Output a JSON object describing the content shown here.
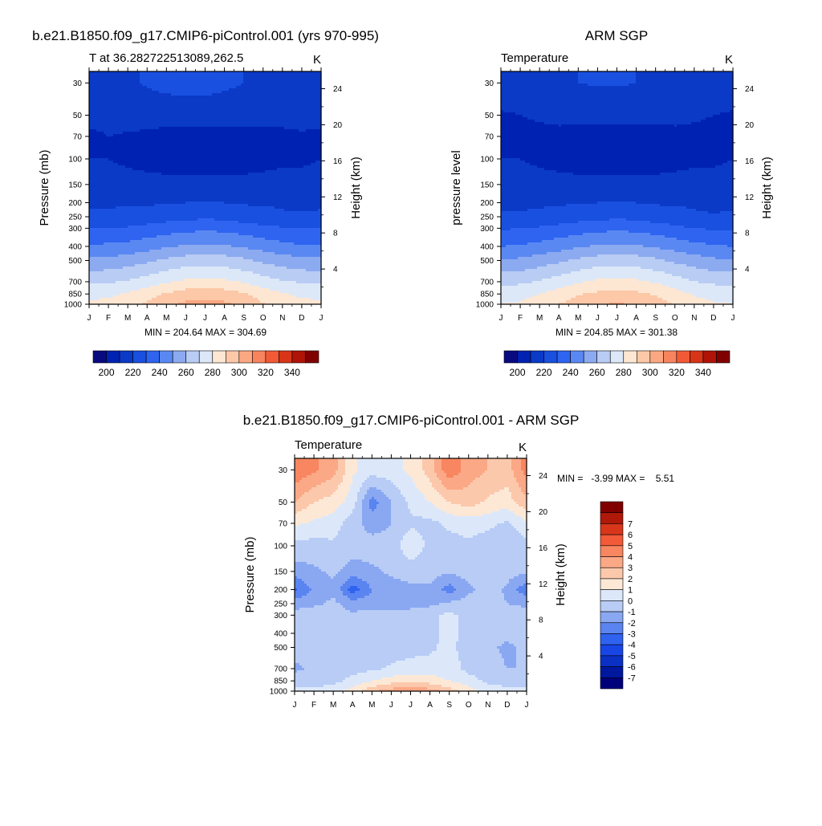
{
  "panels": [
    {
      "title": "b.e21.B1850.f09_g17.CMIP6-piControl.001 (yrs 970-995)",
      "subtitle_left": "T at 36.282722513089,262.5",
      "subtitle_right": "K",
      "ylabel": "Pressure (mb)",
      "ylabel_right": "Height (km)",
      "stats": "MIN = 204.64 MAX = 304.69"
    },
    {
      "title": "ARM SGP",
      "subtitle_left": "Temperature",
      "subtitle_right": "K",
      "ylabel": "pressure level",
      "ylabel_right": "Height (km)",
      "stats": "MIN = 204.85 MAX = 301.38"
    },
    {
      "title": "b.e21.B1850.f09_g17.CMIP6-piControl.001 - ARM SGP",
      "subtitle_left": "Temperature",
      "subtitle_right": "K",
      "ylabel": "Pressure (mb)",
      "ylabel_right": "Height (km)",
      "stats": "MIN =   -3.99 MAX =    5.51"
    }
  ],
  "chart_data": [
    {
      "type": "heatmap",
      "x_categories": [
        "J",
        "F",
        "M",
        "A",
        "M",
        "J",
        "J",
        "A",
        "S",
        "O",
        "N",
        "D",
        "J"
      ],
      "y_ticks": [
        30,
        50,
        70,
        100,
        150,
        200,
        250,
        300,
        400,
        500,
        700,
        850,
        1000
      ],
      "y_scale": "log",
      "y_reversed": true,
      "y_right_ticks": [
        24,
        20,
        16,
        12,
        8,
        4
      ],
      "colorbar_ticks": [
        200,
        220,
        240,
        260,
        280,
        300,
        320,
        340
      ],
      "colorbar_levels": [
        190,
        200,
        210,
        220,
        230,
        240,
        250,
        260,
        270,
        280,
        290,
        300,
        310,
        320,
        330,
        340,
        350
      ],
      "colorbar_colors": [
        "#0a0a80",
        "#0022b2",
        "#0a3ac6",
        "#1a50e0",
        "#2e64f0",
        "#5a88f2",
        "#8caaf0",
        "#b8ccf4",
        "#dce8f8",
        "#fde6d2",
        "#fcc8a8",
        "#fba882",
        "#f8845e",
        "#f25a36",
        "#d83418",
        "#b01408",
        "#800000"
      ],
      "colorbar_orientation": "horizontal",
      "grid": false,
      "z": [
        [
          218,
          218,
          218,
          221,
          223,
          224,
          224,
          222,
          220,
          218,
          218,
          218,
          218
        ],
        [
          213,
          213,
          214,
          214,
          214,
          214,
          214,
          214,
          214,
          214,
          213,
          213,
          213
        ],
        [
          208,
          210,
          209,
          208,
          207,
          207,
          207,
          207,
          207,
          207,
          208,
          209,
          208
        ],
        [
          210,
          210,
          209,
          208,
          207,
          207,
          207,
          207,
          207,
          208,
          209,
          209,
          210
        ],
        [
          212,
          212,
          212,
          212,
          212,
          212,
          212,
          212,
          212,
          212,
          212,
          212,
          212
        ],
        [
          218,
          218,
          219,
          219,
          219,
          220,
          220,
          220,
          219,
          219,
          218,
          218,
          218
        ],
        [
          222,
          223,
          223,
          224,
          226,
          227,
          228,
          227,
          225,
          224,
          222,
          221,
          222
        ],
        [
          230,
          231,
          231,
          233,
          235,
          237,
          238,
          237,
          235,
          232,
          231,
          230,
          230
        ],
        [
          241,
          242,
          243,
          246,
          249,
          251,
          252,
          251,
          249,
          246,
          243,
          241,
          241
        ],
        [
          252,
          253,
          255,
          258,
          262,
          265,
          266,
          265,
          262,
          258,
          255,
          253,
          252
        ],
        [
          268,
          269,
          271,
          275,
          279,
          282,
          283,
          282,
          279,
          275,
          271,
          269,
          268
        ],
        [
          277,
          278,
          281,
          286,
          291,
          295,
          296,
          295,
          291,
          285,
          281,
          278,
          277
        ],
        [
          282,
          283,
          286,
          292,
          298,
          302,
          303,
          302,
          297,
          291,
          286,
          283,
          282
        ]
      ]
    },
    {
      "type": "heatmap",
      "x_categories": [
        "J",
        "F",
        "M",
        "A",
        "M",
        "J",
        "J",
        "A",
        "S",
        "O",
        "N",
        "D",
        "J"
      ],
      "y_ticks": [
        30,
        50,
        70,
        100,
        150,
        200,
        250,
        300,
        400,
        500,
        700,
        850,
        1000
      ],
      "y_scale": "log",
      "y_reversed": true,
      "y_right_ticks": [
        24,
        20,
        16,
        12,
        8,
        4
      ],
      "colorbar_ticks": [
        200,
        220,
        240,
        260,
        280,
        300,
        320,
        340
      ],
      "colorbar_levels": [
        190,
        200,
        210,
        220,
        230,
        240,
        250,
        260,
        270,
        280,
        290,
        300,
        310,
        320,
        330,
        340,
        350
      ],
      "colorbar_colors": [
        "#0a0a80",
        "#0022b2",
        "#0a3ac6",
        "#1a50e0",
        "#2e64f0",
        "#5a88f2",
        "#8caaf0",
        "#b8ccf4",
        "#dce8f8",
        "#fde6d2",
        "#fcc8a8",
        "#fba882",
        "#f8845e",
        "#f25a36",
        "#d83418",
        "#b01408",
        "#800000"
      ],
      "colorbar_orientation": "horizontal",
      "grid": false,
      "z": [
        [
          216,
          216,
          217,
          219,
          220,
          221,
          221,
          220,
          219,
          218,
          217,
          216,
          216
        ],
        [
          209,
          210,
          211,
          212,
          212,
          212,
          212,
          212,
          212,
          212,
          211,
          210,
          209
        ],
        [
          208,
          208,
          208,
          208,
          207,
          207,
          207,
          207,
          207,
          208,
          208,
          208,
          208
        ],
        [
          210,
          210,
          209,
          208,
          207,
          207,
          207,
          207,
          207,
          208,
          209,
          209,
          210
        ],
        [
          212,
          212,
          212,
          212,
          212,
          212,
          212,
          212,
          212,
          212,
          212,
          212,
          212
        ],
        [
          217,
          217,
          218,
          219,
          219,
          220,
          220,
          220,
          219,
          219,
          218,
          217,
          217
        ],
        [
          222,
          222,
          223,
          224,
          226,
          227,
          228,
          227,
          225,
          224,
          222,
          221,
          222
        ],
        [
          229,
          230,
          231,
          233,
          235,
          237,
          238,
          237,
          235,
          232,
          230,
          229,
          229
        ],
        [
          240,
          241,
          243,
          246,
          249,
          251,
          252,
          251,
          249,
          246,
          243,
          241,
          240
        ],
        [
          251,
          252,
          255,
          258,
          262,
          265,
          266,
          265,
          262,
          258,
          255,
          252,
          251
        ],
        [
          267,
          268,
          271,
          275,
          279,
          282,
          283,
          282,
          279,
          275,
          270,
          268,
          267
        ],
        [
          276,
          277,
          280,
          284,
          289,
          292,
          294,
          292,
          289,
          284,
          279,
          277,
          276
        ],
        [
          280,
          281,
          285,
          290,
          295,
          299,
          301,
          299,
          295,
          289,
          284,
          281,
          280
        ]
      ]
    },
    {
      "type": "heatmap",
      "x_categories": [
        "J",
        "F",
        "M",
        "A",
        "M",
        "J",
        "J",
        "A",
        "S",
        "O",
        "N",
        "D",
        "J"
      ],
      "y_ticks": [
        30,
        50,
        70,
        100,
        150,
        200,
        250,
        300,
        400,
        500,
        700,
        850,
        1000
      ],
      "y_scale": "log",
      "y_reversed": true,
      "y_right_ticks": [
        24,
        20,
        16,
        12,
        8,
        4
      ],
      "colorbar_ticks": [
        7,
        6,
        5,
        4,
        3,
        2,
        1,
        0,
        -1,
        -2,
        -3,
        -4,
        -5,
        -6,
        -7
      ],
      "colorbar_levels": [
        -8,
        -7,
        -6,
        -5,
        -4,
        -3,
        -2,
        -1,
        0,
        1,
        2,
        3,
        4,
        5,
        6,
        7,
        8
      ],
      "colorbar_colors": [
        "#00007a",
        "#00189e",
        "#0a30c4",
        "#1846e6",
        "#3062f0",
        "#5a84f0",
        "#8aa8f2",
        "#b8ccf6",
        "#dce8fa",
        "#fde8d6",
        "#fcc8ac",
        "#fba886",
        "#f88660",
        "#f25a38",
        "#d8361a",
        "#b0180a",
        "#800000"
      ],
      "colorbar_orientation": "vertical",
      "grid": false,
      "z": [
        [
          4.8,
          4.2,
          3.5,
          1.2,
          0.5,
          0.6,
          1.2,
          2.5,
          4.8,
          3.5,
          3.0,
          2.5,
          4.5
        ],
        [
          3.0,
          2.0,
          1.5,
          0.5,
          -2.5,
          -1.0,
          0.2,
          1.0,
          2.0,
          2.5,
          1.8,
          1.5,
          2.8
        ],
        [
          1.2,
          0.8,
          0.5,
          -0.6,
          -1.5,
          -1.0,
          -0.2,
          -0.3,
          0.2,
          0.4,
          0.3,
          -0.2,
          0.8
        ],
        [
          -0.3,
          -0.4,
          -0.2,
          -0.5,
          -0.5,
          -0.6,
          0.8,
          -0.3,
          -0.4,
          -0.2,
          -0.6,
          -0.7,
          -0.4
        ],
        [
          -1.5,
          -1.2,
          -0.8,
          -1.5,
          -1.2,
          -0.8,
          -0.6,
          -0.6,
          -0.8,
          -0.6,
          -0.4,
          -0.6,
          -0.8
        ],
        [
          -3.2,
          -1.8,
          -1.2,
          -3.5,
          -2.0,
          -1.5,
          -1.2,
          -1.2,
          -2.5,
          -1.2,
          -0.5,
          -1.2,
          -2.8
        ],
        [
          -1.5,
          -1.2,
          -0.8,
          -1.5,
          -1.5,
          -1.8,
          -1.5,
          -1.2,
          -0.8,
          -0.6,
          -0.6,
          -1.0,
          -1.2
        ],
        [
          -0.5,
          -0.4,
          -0.4,
          -0.8,
          -0.6,
          -0.5,
          -0.4,
          -0.3,
          0.3,
          -0.4,
          -0.5,
          -0.6,
          -0.5
        ],
        [
          -0.4,
          -0.4,
          -0.5,
          -0.6,
          -0.5,
          -0.4,
          -0.2,
          -0.3,
          0.4,
          -0.5,
          -0.7,
          -0.7,
          -0.5
        ],
        [
          -0.6,
          -0.5,
          -0.6,
          -0.7,
          -0.4,
          -0.3,
          -0.2,
          -0.2,
          0.3,
          -0.5,
          -0.8,
          -1.2,
          -0.8
        ],
        [
          -1.2,
          -0.8,
          -0.6,
          -0.4,
          -0.2,
          0.1,
          0.2,
          0.4,
          0.5,
          -0.3,
          -0.6,
          -1.0,
          -1.0
        ],
        [
          -0.5,
          -0.4,
          -0.3,
          0.3,
          1.0,
          1.5,
          1.8,
          1.5,
          1.0,
          0.4,
          -0.2,
          -0.4,
          -0.5
        ],
        [
          0.2,
          0.2,
          0.5,
          1.5,
          2.8,
          3.5,
          3.8,
          3.5,
          2.5,
          1.5,
          0.6,
          0.3,
          0.2
        ]
      ]
    }
  ]
}
